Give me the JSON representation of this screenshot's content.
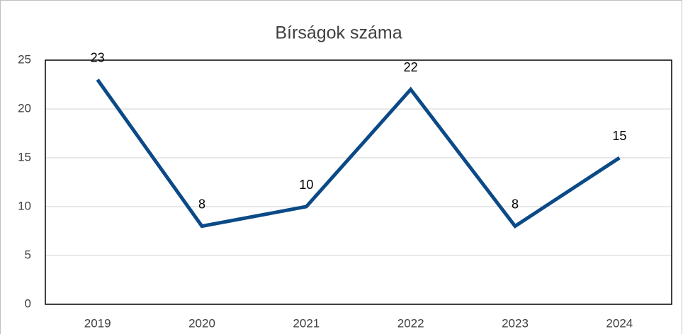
{
  "chart_data": {
    "type": "line",
    "title": "Bírságok száma",
    "categories": [
      "2019",
      "2020",
      "2021",
      "2022",
      "2023",
      "2024"
    ],
    "values": [
      23,
      8,
      10,
      22,
      8,
      15
    ],
    "color": "#0b4a87",
    "ylim": [
      0,
      25
    ],
    "yticks": [
      0,
      5,
      10,
      15,
      20,
      25
    ],
    "grid": true
  }
}
